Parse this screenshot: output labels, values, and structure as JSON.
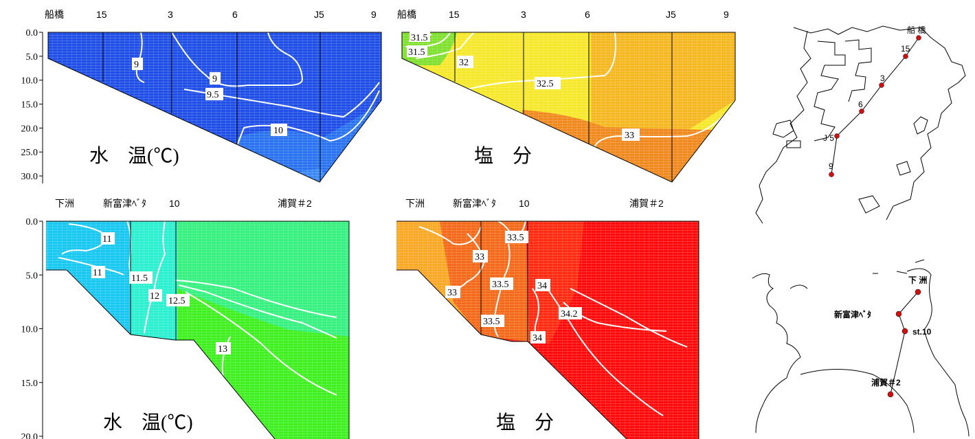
{
  "chart_data": [
    {
      "id": "top_temp",
      "type": "heatmap",
      "title": "水　温(℃)",
      "stations": [
        "船橋",
        "15",
        "3",
        "6",
        "J5",
        "9"
      ],
      "yticks": [
        "0.0",
        "5.0",
        "10.0",
        "15.0",
        "20.0",
        "25.0",
        "30.0"
      ],
      "ylim": [
        0,
        33
      ],
      "contours": [
        {
          "value": "9",
          "label": "9"
        },
        {
          "value": "9",
          "label": "9"
        },
        {
          "value": "9.5",
          "label": "9.5"
        },
        {
          "value": "10",
          "label": "10"
        }
      ],
      "colors": [
        "#1f4fe6",
        "#2a73f0"
      ]
    },
    {
      "id": "top_sal",
      "type": "heatmap",
      "title": "塩　分",
      "stations": [
        "船橋",
        "15",
        "3",
        "6",
        "J5",
        "9"
      ],
      "ylim": [
        0,
        33
      ],
      "contours": [
        {
          "value": "31.5",
          "label": "31.5"
        },
        {
          "value": "31.5",
          "label": "31.5"
        },
        {
          "value": "32",
          "label": "32"
        },
        {
          "value": "32.5",
          "label": "32.5"
        },
        {
          "value": "33",
          "label": "33"
        }
      ],
      "colors": [
        "#7fe030",
        "#f6e82a",
        "#f5b820",
        "#f08a1e"
      ]
    },
    {
      "id": "bot_temp",
      "type": "heatmap",
      "title": "水　温(℃)",
      "stations": [
        "下洲",
        "新富津ﾍﾞﾀ",
        "10",
        "浦賀＃2"
      ],
      "yticks": [
        "0.0",
        "5.0",
        "10.0",
        "15.0",
        "20.0"
      ],
      "ylim": [
        0,
        20
      ],
      "contours": [
        {
          "value": "11",
          "label": "11"
        },
        {
          "value": "11",
          "label": "11"
        },
        {
          "value": "11.5",
          "label": "11.5"
        },
        {
          "value": "12",
          "label": "12"
        },
        {
          "value": "12.5",
          "label": "12.5"
        },
        {
          "value": "13",
          "label": "13"
        }
      ],
      "colors": [
        "#18c8f0",
        "#2af0d0",
        "#36f080",
        "#40f020"
      ]
    },
    {
      "id": "bot_sal",
      "type": "heatmap",
      "title": "塩　分",
      "stations": [
        "下洲",
        "新富津ﾍﾞﾀ",
        "10",
        "浦賀＃2"
      ],
      "ylim": [
        0,
        20
      ],
      "contours": [
        {
          "value": "33.5",
          "label": "33.5"
        },
        {
          "value": "33",
          "label": "33"
        },
        {
          "value": "33",
          "label": "33"
        },
        {
          "value": "33.5",
          "label": "33.5"
        },
        {
          "value": "33.5",
          "label": "33.5"
        },
        {
          "value": "34",
          "label": "34"
        },
        {
          "value": "34.2",
          "label": "34.2"
        },
        {
          "value": "34",
          "label": "34"
        }
      ],
      "colors": [
        "#f9a825",
        "#f46a1a",
        "#ff2a10",
        "#ff0a0a"
      ]
    }
  ],
  "maps": {
    "top": {
      "labels": [
        "船 橋",
        "15",
        "3",
        "6",
        "J 5",
        "9"
      ]
    },
    "bottom": {
      "labels": [
        "下 洲",
        "新富津ﾍﾞﾀ",
        "st.10",
        "浦賀＃2"
      ]
    }
  }
}
